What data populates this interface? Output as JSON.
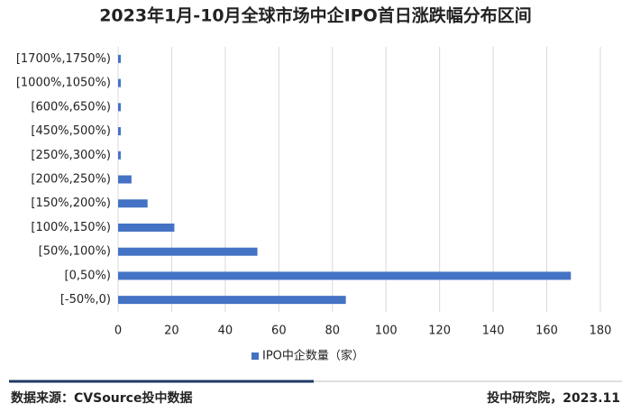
{
  "chart_data": {
    "type": "hbar",
    "title": "2023年1月-10月全球市场中企IPO首日涨跌幅分布区间",
    "categories": [
      "[1700%,1750%)",
      "[1000%,1050%)",
      "[600%,650%)",
      "[450%,500%)",
      "[250%,300%)",
      "[200%,250%)",
      "[150%,200%)",
      "[100%,150%)",
      "[50%,100%)",
      "[0,50%)",
      "[-50%,0)"
    ],
    "series": [
      {
        "name": "IPO中企数量（家）",
        "color": "#4472c4",
        "values": [
          1,
          1,
          1,
          1,
          1,
          5,
          11,
          21,
          52,
          169,
          85
        ]
      }
    ],
    "xlim": [
      0,
      180
    ],
    "xticks": [
      0,
      20,
      40,
      60,
      80,
      100,
      120,
      140,
      160,
      180
    ],
    "grid": true,
    "legend": "bottom"
  },
  "footer": {
    "source": "数据来源：CVSource投中数据",
    "publisher": "投中研究院，2023.11"
  }
}
